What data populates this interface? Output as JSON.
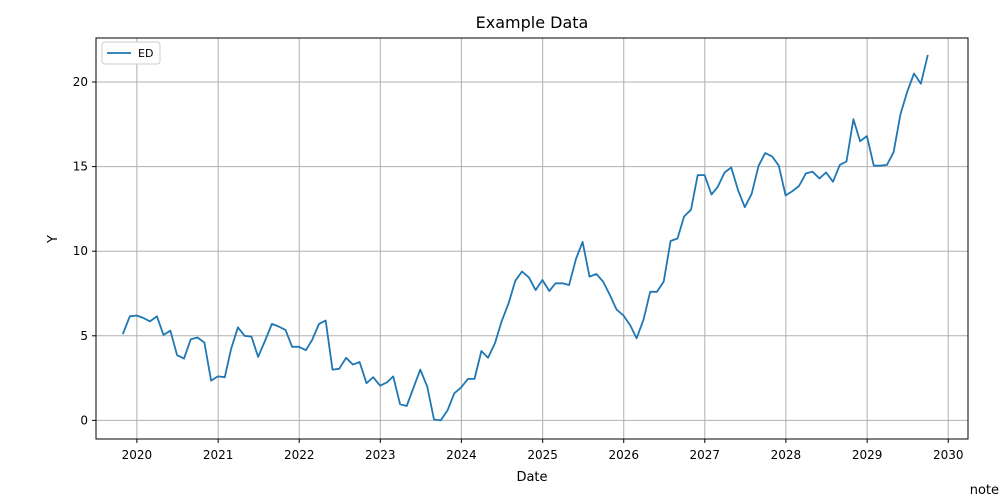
{
  "chart_data": {
    "type": "line",
    "title": "Example Data",
    "xlabel": "Date",
    "ylabel": "Y",
    "x_ticks": [
      "2020",
      "2021",
      "2022",
      "2023",
      "2024",
      "2025",
      "2026",
      "2027",
      "2028",
      "2029",
      "2030"
    ],
    "y_ticks": [
      "0",
      "5",
      "10",
      "15",
      "20"
    ],
    "xlim": [
      "2019-07-01",
      "2030-03-31"
    ],
    "ylim": [
      -1.1,
      22.6
    ],
    "grid": true,
    "legend_position": "top-left",
    "series": [
      {
        "name": "ED",
        "color": "#1f77b4",
        "dates": [
          "2019-10-31",
          "2019-11-30",
          "2019-12-31",
          "2020-01-31",
          "2020-02-29",
          "2020-03-31",
          "2020-04-30",
          "2020-05-31",
          "2020-06-30",
          "2020-07-31",
          "2020-08-31",
          "2020-09-30",
          "2020-10-31",
          "2020-11-30",
          "2020-12-31",
          "2021-01-31",
          "2021-02-28",
          "2021-03-31",
          "2021-04-30",
          "2021-05-31",
          "2021-06-30",
          "2021-07-31",
          "2021-08-31",
          "2021-09-30",
          "2021-10-31",
          "2021-11-30",
          "2021-12-31",
          "2022-01-31",
          "2022-02-28",
          "2022-03-31",
          "2022-04-30",
          "2022-05-31",
          "2022-06-30",
          "2022-07-31",
          "2022-08-31",
          "2022-09-30",
          "2022-10-31",
          "2022-11-30",
          "2022-12-31",
          "2023-01-31",
          "2023-02-28",
          "2023-03-31",
          "2023-04-30",
          "2023-05-31",
          "2023-06-30",
          "2023-07-31",
          "2023-08-31",
          "2023-09-30",
          "2023-10-31",
          "2023-11-30",
          "2023-12-31",
          "2024-01-31",
          "2024-02-29",
          "2024-03-31",
          "2024-04-30",
          "2024-05-31",
          "2024-06-30",
          "2024-07-31",
          "2024-08-31",
          "2024-09-30",
          "2024-10-31",
          "2024-11-30",
          "2024-12-31",
          "2025-01-31",
          "2025-02-28",
          "2025-03-31",
          "2025-04-30",
          "2025-05-31",
          "2025-06-30",
          "2025-07-31",
          "2025-08-31",
          "2025-09-30",
          "2025-10-31",
          "2025-11-30",
          "2025-12-31",
          "2026-01-31",
          "2026-02-28",
          "2026-03-31",
          "2026-04-30",
          "2026-05-31",
          "2026-06-30",
          "2026-07-31",
          "2026-08-31",
          "2026-09-30",
          "2026-10-31",
          "2026-11-30",
          "2026-12-31",
          "2027-01-31",
          "2027-02-28",
          "2027-03-31",
          "2027-04-30",
          "2027-05-31",
          "2027-06-30",
          "2027-07-31",
          "2027-08-31",
          "2027-09-30",
          "2027-10-31",
          "2027-11-30",
          "2027-12-31",
          "2028-01-31",
          "2028-02-29",
          "2028-03-31",
          "2028-04-30",
          "2028-05-31",
          "2028-06-30",
          "2028-07-31",
          "2028-08-31",
          "2028-09-30",
          "2028-10-31",
          "2028-11-30",
          "2028-12-31",
          "2029-01-31",
          "2029-02-28",
          "2029-03-31",
          "2029-04-30",
          "2029-05-31",
          "2029-06-30",
          "2029-07-31",
          "2029-08-31",
          "2029-09-30"
        ],
        "values": [
          5.15,
          6.15,
          6.2,
          6.05,
          5.85,
          6.15,
          5.05,
          5.3,
          3.85,
          3.65,
          4.8,
          4.9,
          4.6,
          2.35,
          2.6,
          2.55,
          4.2,
          5.5,
          5.0,
          4.95,
          3.75,
          4.7,
          5.7,
          5.55,
          5.35,
          4.35,
          4.35,
          4.15,
          4.75,
          5.7,
          5.9,
          3.0,
          3.05,
          3.7,
          3.3,
          3.45,
          2.2,
          2.55,
          2.05,
          2.25,
          2.6,
          0.95,
          0.85,
          1.95,
          3.0,
          2.0,
          0.05,
          0.0,
          0.6,
          1.6,
          1.95,
          2.45,
          2.45,
          4.1,
          3.7,
          4.55,
          5.85,
          6.9,
          8.25,
          8.8,
          8.45,
          7.7,
          8.3,
          7.65,
          8.1,
          8.1,
          8.0,
          9.55,
          10.55,
          8.5,
          8.65,
          8.2,
          7.4,
          6.55,
          6.2,
          5.6,
          4.85,
          5.95,
          7.6,
          7.6,
          8.2,
          10.6,
          10.75,
          12.05,
          12.45,
          14.5,
          14.5,
          13.35,
          13.8,
          14.65,
          14.95,
          13.6,
          12.6,
          13.4,
          15.05,
          15.8,
          15.6,
          15.05,
          13.3,
          13.55,
          13.85,
          14.6,
          14.7,
          14.3,
          14.65,
          14.1,
          15.1,
          15.3,
          17.8,
          16.5,
          16.8,
          15.05,
          15.05,
          15.1,
          15.85,
          18.1,
          19.4,
          20.5,
          19.9,
          21.55
        ]
      }
    ]
  },
  "footer": {
    "note": "note"
  }
}
